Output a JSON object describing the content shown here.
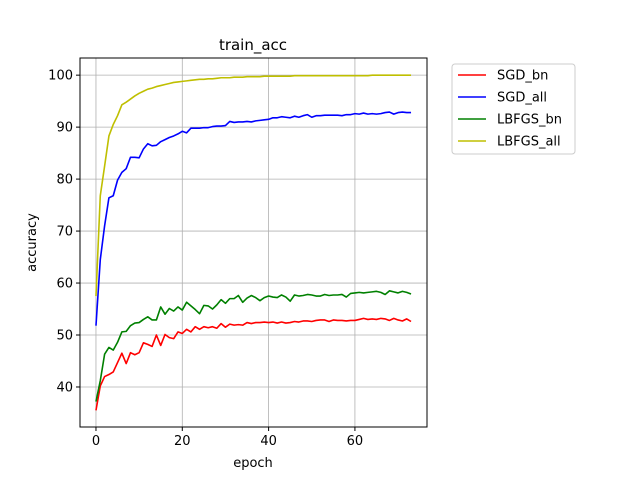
{
  "chart_data": {
    "type": "line",
    "title": "train_acc",
    "xlabel": "epoch",
    "ylabel": "accuracy",
    "xlim": [
      -3.7,
      76.7
    ],
    "ylim": [
      32.3,
      103.3
    ],
    "xticks": [
      0,
      20,
      40,
      60
    ],
    "yticks": [
      40,
      50,
      60,
      70,
      80,
      90,
      100
    ],
    "grid": true,
    "legend_position": "outside right, top",
    "series": [
      {
        "name": "SGD_bn",
        "color": "#ff0000",
        "x": [
          0,
          1,
          2,
          3,
          4,
          5,
          6,
          7,
          8,
          9,
          10,
          11,
          12,
          13,
          14,
          15,
          16,
          17,
          18,
          19,
          20,
          21,
          22,
          23,
          24,
          25,
          26,
          27,
          28,
          29,
          30,
          31,
          32,
          33,
          34,
          35,
          36,
          37,
          38,
          39,
          40,
          41,
          42,
          43,
          44,
          45,
          46,
          47,
          48,
          49,
          50,
          51,
          52,
          53,
          54,
          55,
          56,
          57,
          58,
          59,
          60,
          61,
          62,
          63,
          64,
          65,
          66,
          67,
          68,
          69,
          70,
          71,
          72,
          73
        ],
        "values": [
          35.5,
          40.2,
          42.0,
          42.4,
          42.9,
          44.7,
          46.5,
          44.5,
          46.6,
          46.2,
          46.6,
          48.5,
          48.2,
          47.8,
          50.0,
          48.0,
          50.1,
          49.5,
          49.3,
          50.6,
          50.3,
          51.1,
          50.6,
          51.6,
          51.1,
          51.6,
          51.4,
          51.6,
          51.3,
          52.2,
          51.5,
          52.1,
          51.9,
          52.0,
          51.9,
          52.4,
          52.2,
          52.4,
          52.4,
          52.5,
          52.4,
          52.5,
          52.3,
          52.5,
          52.3,
          52.4,
          52.6,
          52.5,
          52.7,
          52.7,
          52.6,
          52.8,
          52.9,
          52.9,
          52.6,
          52.9,
          52.8,
          52.8,
          52.7,
          52.8,
          52.8,
          53.0,
          53.2,
          53.0,
          53.1,
          53.0,
          53.2,
          53.1,
          52.8,
          53.2,
          52.9,
          52.7,
          53.1,
          52.6
        ]
      },
      {
        "name": "SGD_all",
        "color": "#0000ff",
        "x": [
          0,
          1,
          2,
          3,
          4,
          5,
          6,
          7,
          8,
          9,
          10,
          11,
          12,
          13,
          14,
          15,
          16,
          17,
          18,
          19,
          20,
          21,
          22,
          23,
          24,
          25,
          26,
          27,
          28,
          29,
          30,
          31,
          32,
          33,
          34,
          35,
          36,
          37,
          38,
          39,
          40,
          41,
          42,
          43,
          44,
          45,
          46,
          47,
          48,
          49,
          50,
          51,
          52,
          53,
          54,
          55,
          56,
          57,
          58,
          59,
          60,
          61,
          62,
          63,
          64,
          65,
          66,
          67,
          68,
          69,
          70,
          71,
          72,
          73
        ],
        "values": [
          51.8,
          64.5,
          71.0,
          76.4,
          76.8,
          79.8,
          81.3,
          82.0,
          84.2,
          84.2,
          84.1,
          85.8,
          86.8,
          86.4,
          86.5,
          87.2,
          87.6,
          88.0,
          88.3,
          88.7,
          89.2,
          88.9,
          89.8,
          89.8,
          89.8,
          89.9,
          89.9,
          90.1,
          90.2,
          90.2,
          90.3,
          91.1,
          90.9,
          91.0,
          91.0,
          91.1,
          91.0,
          91.2,
          91.3,
          91.4,
          91.5,
          91.8,
          91.8,
          92.0,
          91.9,
          91.8,
          92.1,
          91.9,
          92.2,
          92.4,
          91.9,
          92.2,
          92.2,
          92.3,
          92.3,
          92.3,
          92.3,
          92.2,
          92.4,
          92.4,
          92.6,
          92.5,
          92.7,
          92.5,
          92.6,
          92.5,
          92.6,
          92.8,
          92.9,
          92.5,
          92.8,
          92.9,
          92.8,
          92.8
        ]
      },
      {
        "name": "LBFGS_bn",
        "color": "#008000",
        "x": [
          0,
          1,
          2,
          3,
          4,
          5,
          6,
          7,
          8,
          9,
          10,
          11,
          12,
          13,
          14,
          15,
          16,
          17,
          18,
          19,
          20,
          21,
          22,
          23,
          24,
          25,
          26,
          27,
          28,
          29,
          30,
          31,
          32,
          33,
          34,
          35,
          36,
          37,
          38,
          39,
          40,
          41,
          42,
          43,
          44,
          45,
          46,
          47,
          48,
          49,
          50,
          51,
          52,
          53,
          54,
          55,
          56,
          57,
          58,
          59,
          60,
          61,
          62,
          63,
          64,
          65,
          66,
          67,
          68,
          69,
          70,
          71,
          72,
          73
        ],
        "values": [
          37.2,
          41.2,
          46.3,
          47.6,
          47.1,
          48.6,
          50.6,
          50.7,
          51.8,
          52.3,
          52.4,
          53.0,
          53.5,
          52.9,
          52.9,
          55.4,
          54.0,
          55.1,
          54.6,
          55.4,
          54.8,
          56.3,
          55.6,
          54.9,
          54.1,
          55.7,
          55.6,
          55.0,
          55.8,
          56.8,
          56.1,
          57.0,
          57.0,
          57.6,
          56.3,
          57.1,
          57.6,
          57.2,
          56.6,
          57.2,
          57.5,
          57.3,
          57.2,
          57.7,
          57.3,
          56.5,
          57.7,
          57.5,
          57.6,
          57.8,
          57.7,
          57.5,
          57.5,
          57.8,
          57.6,
          57.7,
          57.7,
          57.8,
          57.3,
          58.0,
          58.1,
          58.2,
          58.1,
          58.2,
          58.3,
          58.4,
          58.2,
          57.8,
          58.5,
          58.3,
          58.1,
          58.4,
          58.2,
          57.9
        ]
      },
      {
        "name": "LBFGS_all",
        "color": "#bfbf00",
        "x": [
          0,
          1,
          2,
          3,
          4,
          5,
          6,
          7,
          8,
          9,
          10,
          11,
          12,
          13,
          14,
          15,
          16,
          17,
          18,
          19,
          20,
          21,
          22,
          23,
          24,
          25,
          26,
          27,
          28,
          29,
          30,
          31,
          32,
          33,
          34,
          35,
          36,
          37,
          38,
          39,
          40,
          41,
          42,
          43,
          44,
          45,
          46,
          47,
          48,
          49,
          50,
          51,
          52,
          53,
          54,
          55,
          56,
          57,
          58,
          59,
          60,
          61,
          62,
          63,
          64,
          65,
          66,
          67,
          68,
          69,
          70,
          71,
          72,
          73
        ],
        "values": [
          57.5,
          76.8,
          82.5,
          88.3,
          90.5,
          92.2,
          94.3,
          94.8,
          95.4,
          96.0,
          96.5,
          96.9,
          97.3,
          97.5,
          97.8,
          98.0,
          98.2,
          98.4,
          98.6,
          98.7,
          98.8,
          98.9,
          99.0,
          99.1,
          99.2,
          99.2,
          99.3,
          99.3,
          99.4,
          99.5,
          99.5,
          99.5,
          99.6,
          99.6,
          99.6,
          99.7,
          99.7,
          99.7,
          99.7,
          99.8,
          99.8,
          99.8,
          99.8,
          99.8,
          99.8,
          99.8,
          99.9,
          99.9,
          99.9,
          99.9,
          99.9,
          99.9,
          99.9,
          99.9,
          99.9,
          99.9,
          99.9,
          99.9,
          99.9,
          99.9,
          99.9,
          99.9,
          99.9,
          99.9,
          100.0,
          100.0,
          100.0,
          100.0,
          100.0,
          100.0,
          100.0,
          100.0,
          100.0,
          100.0
        ]
      }
    ]
  }
}
